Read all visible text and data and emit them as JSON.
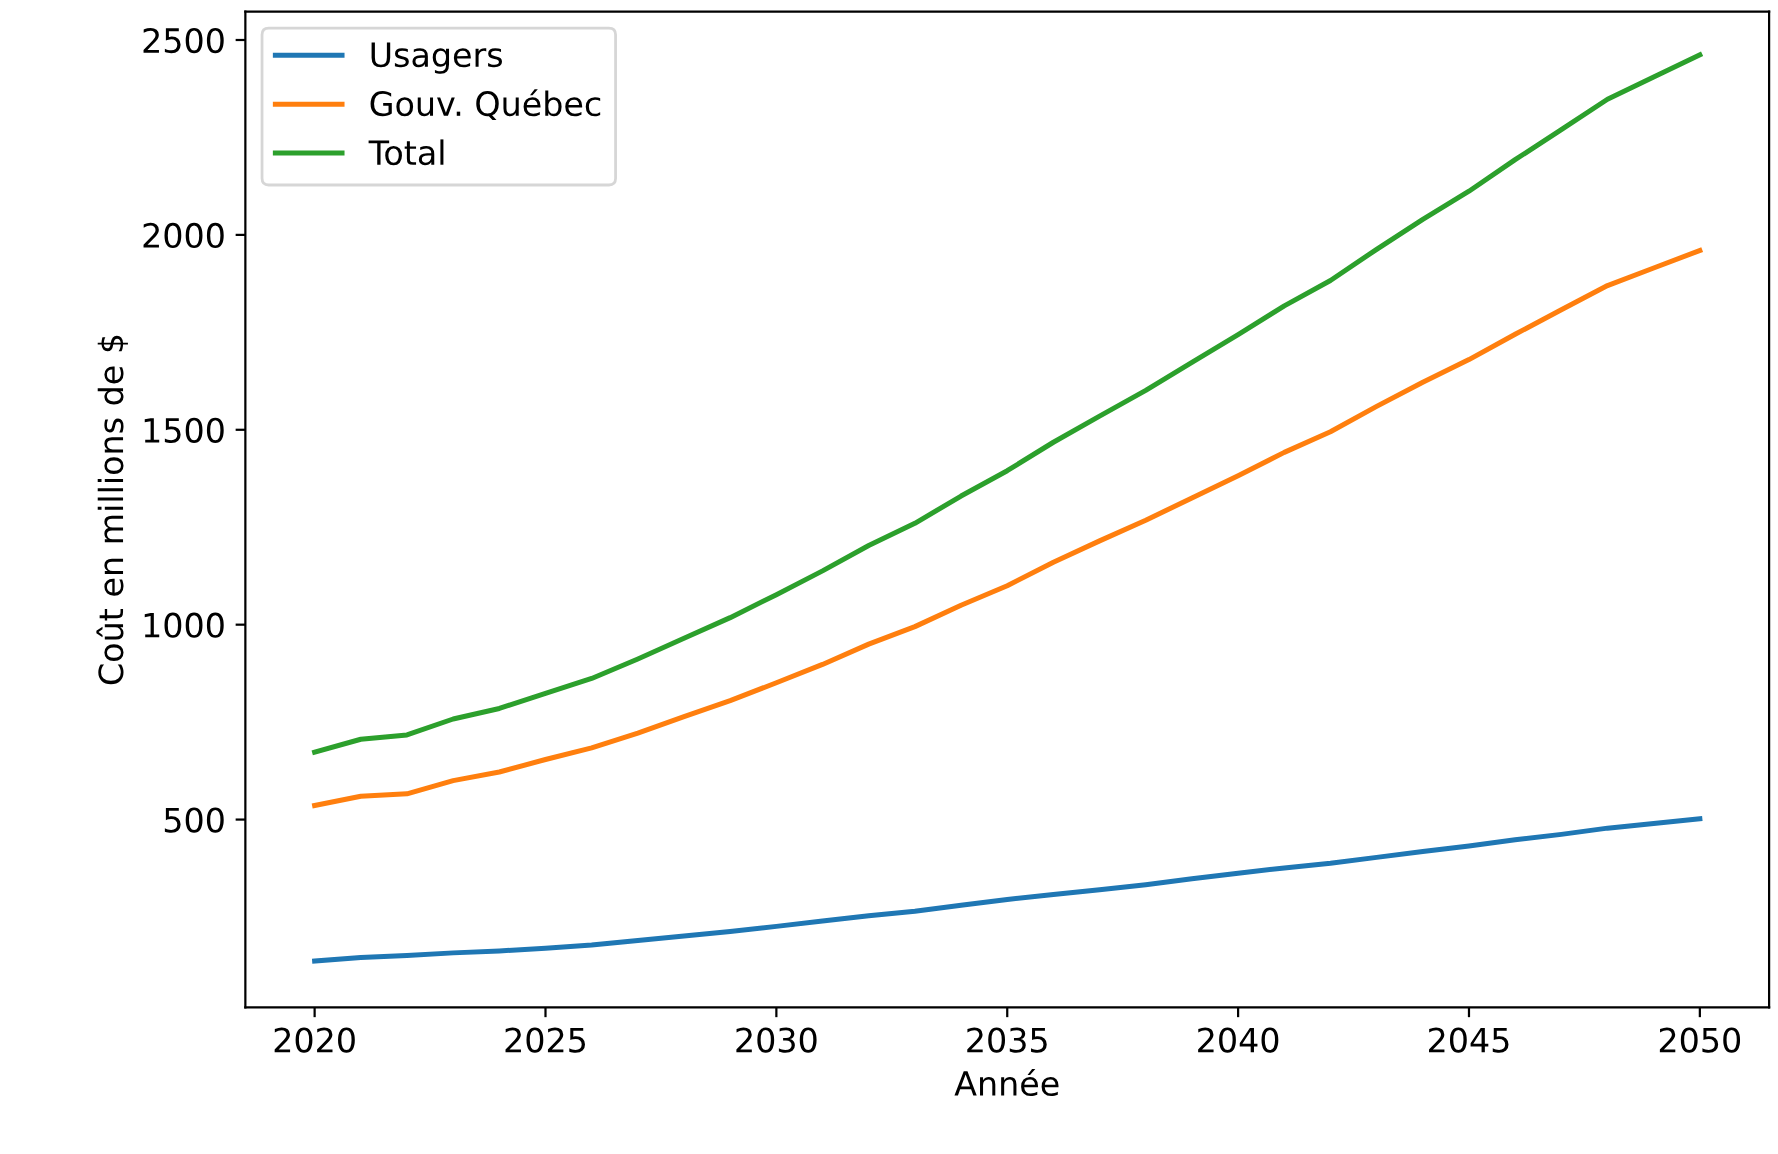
{
  "chart_data": {
    "type": "line",
    "xlabel": "Année",
    "ylabel": "Coût en millions de $",
    "x": [
      2020,
      2021,
      2022,
      2023,
      2024,
      2025,
      2026,
      2027,
      2028,
      2029,
      2030,
      2031,
      2032,
      2033,
      2034,
      2035,
      2036,
      2037,
      2038,
      2039,
      2040,
      2041,
      2042,
      2043,
      2044,
      2045,
      2046,
      2047,
      2048,
      2049,
      2050
    ],
    "series": [
      {
        "name": "Usagers",
        "color": "#1f77b4",
        "values": [
          137,
          146,
          151,
          158,
          163,
          170,
          178,
          190,
          201,
          213,
          226,
          240,
          253,
          265,
          280,
          295,
          308,
          320,
          333,
          348,
          362,
          376,
          388,
          403,
          418,
          432,
          448,
          462,
          478,
          490,
          502
        ]
      },
      {
        "name": "Gouv. Québec",
        "color": "#ff7f0e",
        "values": [
          536,
          560,
          566,
          600,
          622,
          654,
          684,
          722,
          764,
          805,
          851,
          898,
          950,
          995,
          1050,
          1100,
          1160,
          1215,
          1268,
          1325,
          1382,
          1442,
          1495,
          1560,
          1622,
          1680,
          1745,
          1808,
          1870,
          1915,
          1960
        ]
      },
      {
        "name": "Total",
        "color": "#2ca02c",
        "values": [
          673,
          706,
          717,
          758,
          785,
          824,
          862,
          912,
          965,
          1018,
          1077,
          1138,
          1203,
          1260,
          1330,
          1395,
          1468,
          1535,
          1601,
          1673,
          1744,
          1818,
          1883,
          1963,
          2040,
          2112,
          2193,
          2270,
          2348,
          2405,
          2462
        ]
      }
    ],
    "xlim": [
      2018.5,
      2051.5
    ],
    "xticks": [
      2020,
      2025,
      2030,
      2035,
      2040,
      2045,
      2050
    ],
    "ylim": [
      18,
      2573
    ],
    "yticks": [
      500,
      1000,
      1500,
      2000,
      2500
    ],
    "grid": false,
    "legend": "top left"
  }
}
